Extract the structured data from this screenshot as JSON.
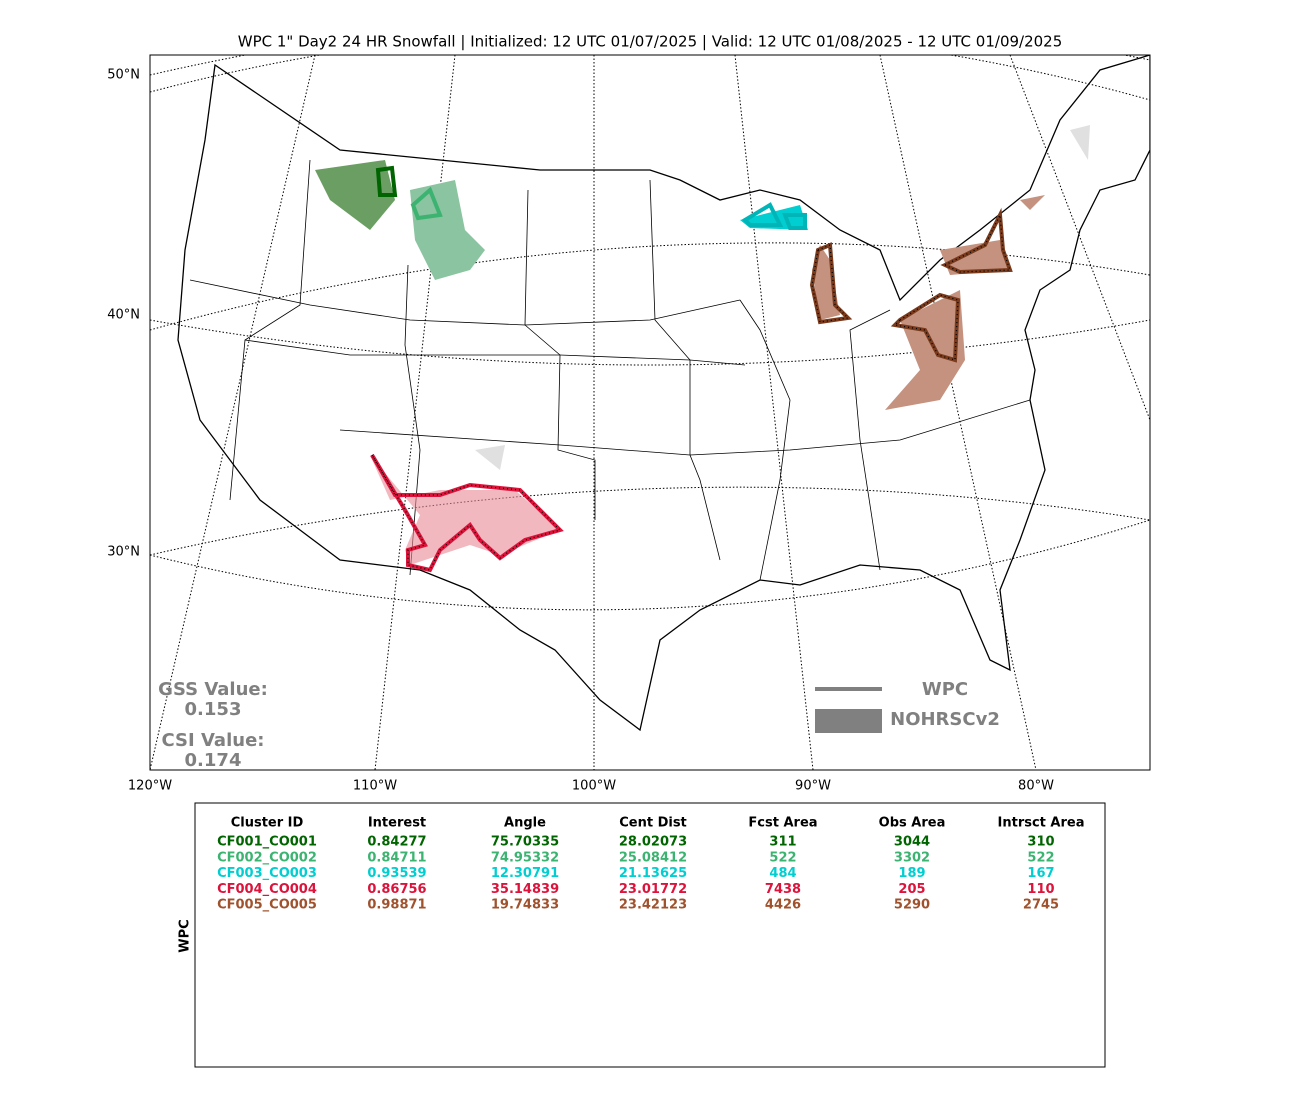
{
  "title": "WPC 1\" Day2 24 HR Snowfall | Initialized: 12 UTC 01/07/2025 | Valid: 12 UTC 01/08/2025 - 12 UTC 01/09/2025",
  "map": {
    "lat_labels": [
      "50°N",
      "40°N",
      "30°N"
    ],
    "lon_labels": [
      "120°W",
      "110°W",
      "100°W",
      "90°W",
      "80°W"
    ],
    "scores": [
      {
        "label": "GSS Value:",
        "value": 0.153
      },
      {
        "label": "CSI Value:",
        "value": 0.174
      }
    ],
    "legend": [
      "WPC",
      "NOHRSCv2"
    ]
  },
  "table": {
    "side_label": "WPC",
    "header": [
      "Cluster ID",
      "Interest",
      "Angle",
      "Cent Dist",
      "Fcst Area",
      "Obs Area",
      "Intrsct Area"
    ],
    "rows": [
      {
        "color": "#006400",
        "cells": [
          "CF001_CO001",
          0.84277,
          75.70335,
          28.02073,
          311,
          3044,
          310
        ]
      },
      {
        "color": "#3cb371",
        "cells": [
          "CF002_CO002",
          0.84711,
          74.95332,
          25.08412,
          522,
          3302,
          522
        ]
      },
      {
        "color": "#00ced1",
        "cells": [
          "CF003_CO003",
          0.93539,
          12.30791,
          21.13625,
          484,
          189,
          167
        ]
      },
      {
        "color": "#dc143c",
        "cells": [
          "CF004_CO004",
          0.86756,
          35.14839,
          23.01772,
          7438,
          205,
          110
        ]
      },
      {
        "color": "#a0522d",
        "cells": [
          "CF005_CO005",
          0.98871,
          19.74833,
          23.42123,
          4426,
          5290,
          2745
        ]
      }
    ]
  }
}
